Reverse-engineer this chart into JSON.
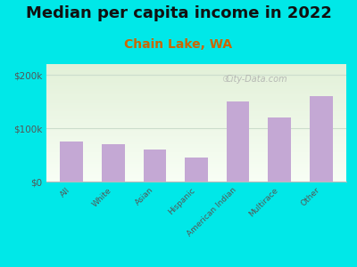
{
  "title": "Median per capita income in 2022",
  "subtitle": "Chain Lake, WA",
  "categories": [
    "All",
    "White",
    "Asian",
    "Hispanic",
    "American Indian",
    "Multirace",
    "Other"
  ],
  "values": [
    75000,
    70000,
    60000,
    45000,
    150000,
    120000,
    160000
  ],
  "bar_color": "#c4a8d4",
  "background_outer": "#00e8e8",
  "background_plot_top": "#e2f0d8",
  "background_plot_bottom": "#f8fef5",
  "title_fontsize": 13,
  "subtitle_fontsize": 10,
  "subtitle_color": "#cc6600",
  "title_color": "#111111",
  "tick_label_color": "#555555",
  "ylim": [
    0,
    220000
  ],
  "yticks": [
    0,
    100000,
    200000
  ],
  "ytick_labels": [
    "$0",
    "$100k",
    "$200k"
  ],
  "watermark": "City-Data.com"
}
